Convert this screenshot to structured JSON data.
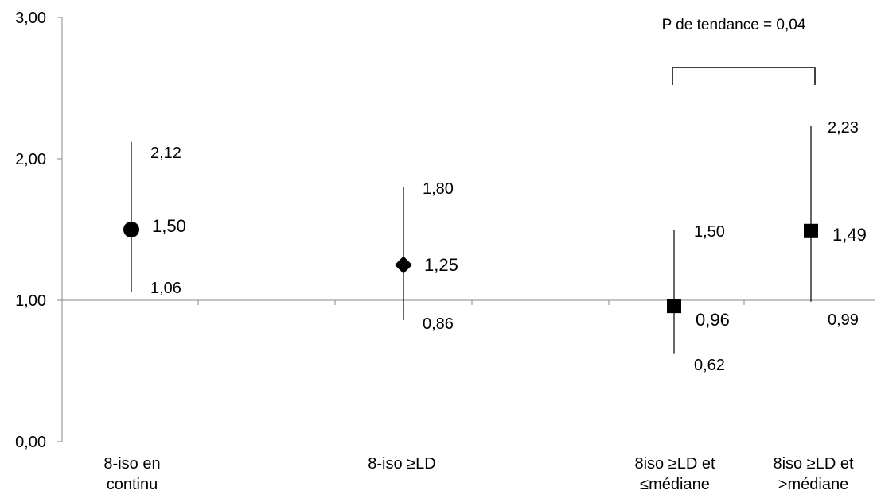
{
  "chart_data": {
    "type": "scatter",
    "ylim": [
      0,
      3
    ],
    "y_ticks": [
      {
        "value": 0,
        "label": "0,00"
      },
      {
        "value": 1,
        "label": "1,00"
      },
      {
        "value": 2,
        "label": "2,00"
      },
      {
        "value": 3,
        "label": "3,00"
      }
    ],
    "reference_line": 1,
    "categories": [
      {
        "lines": [
          "8-iso en",
          "continu"
        ]
      },
      {
        "lines": [
          "8-iso ≥LD"
        ]
      },
      {
        "lines": [
          "8iso ≥LD et",
          "≤médiane"
        ]
      },
      {
        "lines": [
          "8iso ≥LD et",
          ">médiane"
        ]
      }
    ],
    "points": [
      {
        "marker": "circle",
        "value": 1.5,
        "lower": 1.06,
        "upper": 2.12,
        "value_label": "1,50",
        "lower_label": "1,06",
        "upper_label": "2,12"
      },
      {
        "marker": "diamond",
        "value": 1.25,
        "lower": 0.86,
        "upper": 1.8,
        "value_label": "1,25",
        "lower_label": "0,86",
        "upper_label": "1,80"
      },
      {
        "marker": "square",
        "value": 0.96,
        "lower": 0.62,
        "upper": 1.5,
        "value_label": "0,96",
        "lower_label": "0,62",
        "upper_label": "1,50"
      },
      {
        "marker": "square",
        "value": 1.49,
        "lower": 0.99,
        "upper": 2.23,
        "value_label": "1,49",
        "lower_label": "0,99",
        "upper_label": "2,23"
      }
    ],
    "trend": {
      "label": "P de tendance = 0,04",
      "from_index": 2,
      "to_index": 3
    },
    "colors": {
      "marker": "#000000",
      "axis": "#888888"
    }
  }
}
